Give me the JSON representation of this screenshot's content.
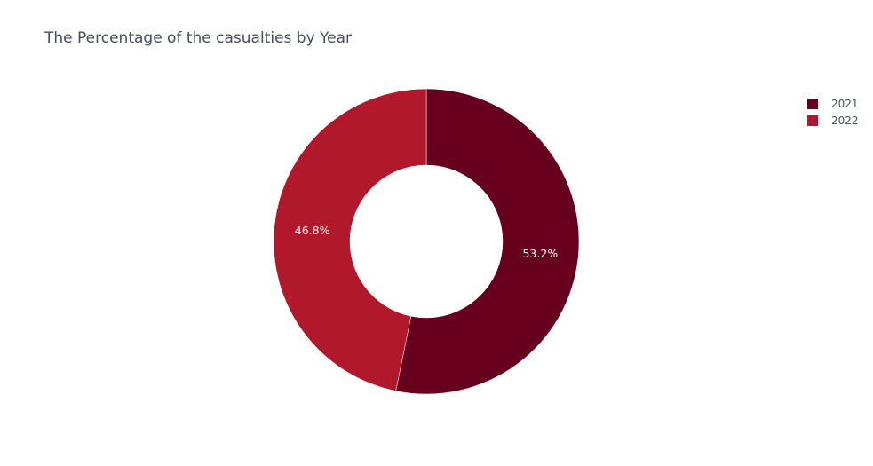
{
  "chart_data": {
    "type": "pie",
    "hole": true,
    "title": "The Percentage of the casualties by Year",
    "categories": [
      "2021",
      "2022"
    ],
    "values": [
      53.2,
      46.8
    ],
    "value_labels": [
      "53.2%",
      "46.8%"
    ],
    "colors": [
      "#67001f",
      "#b2182b"
    ],
    "legend_position": "top-right",
    "label_color": "#ffffff"
  }
}
